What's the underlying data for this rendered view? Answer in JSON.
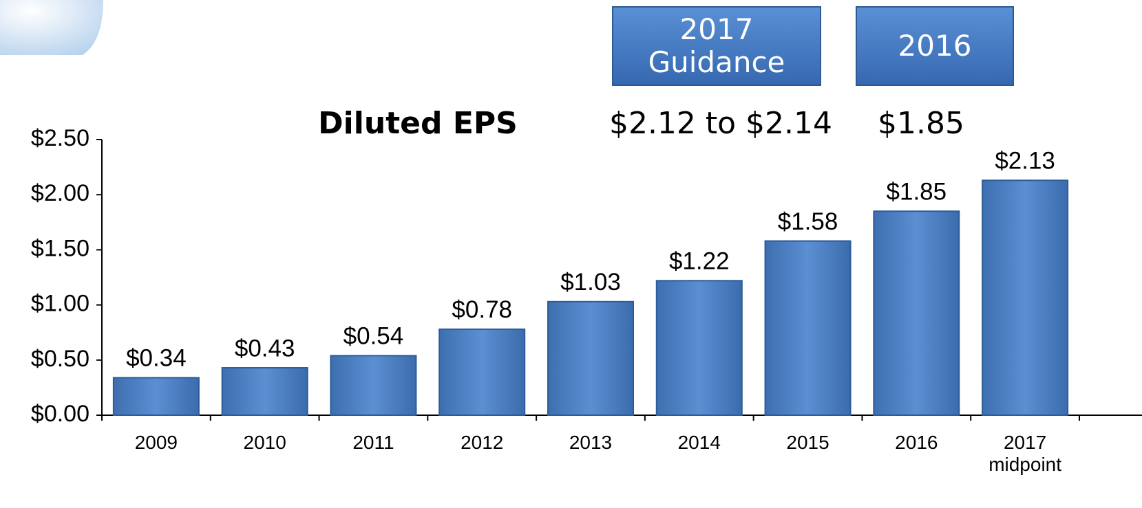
{
  "chart_data": {
    "type": "bar",
    "title": "Diluted EPS",
    "categories": [
      "2009",
      "2010",
      "2011",
      "2012",
      "2013",
      "2014",
      "2015",
      "2016",
      "2017 midpoint"
    ],
    "values": [
      0.34,
      0.43,
      0.54,
      0.78,
      1.03,
      1.22,
      1.58,
      1.85,
      2.13
    ],
    "value_labels": [
      "$0.34",
      "$0.43",
      "$0.54",
      "$0.78",
      "$1.03",
      "$1.22",
      "$1.58",
      "$1.85",
      "$2.13"
    ],
    "color": "#4a7ebf",
    "ylim": [
      0,
      2.5
    ],
    "yticks": [
      {
        "value": 0,
        "label": "$0.00"
      },
      {
        "value": 0.5,
        "label": "$0.50"
      },
      {
        "value": 1,
        "label": "$1.00"
      },
      {
        "value": 1.5,
        "label": "$1.50"
      },
      {
        "value": 2,
        "label": "$2.00"
      },
      {
        "value": 2.5,
        "label": "$2.50"
      }
    ],
    "grid": false,
    "guidance": [
      {
        "header": "2017 Guidance",
        "value": "$2.12 to $2.14"
      },
      {
        "header": "2016",
        "value": "$1.85"
      }
    ]
  }
}
